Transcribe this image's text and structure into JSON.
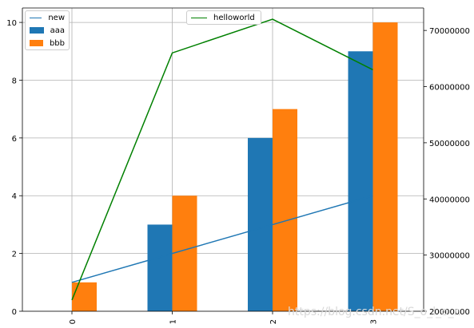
{
  "chart_data": {
    "type": "bar",
    "categories": [
      "0",
      "1",
      "2",
      "3"
    ],
    "series": [
      {
        "name": "aaa",
        "type": "bar",
        "axis": "left",
        "color": "#1f77b4",
        "values": [
          0,
          3,
          6,
          9
        ]
      },
      {
        "name": "bbb",
        "type": "bar",
        "axis": "left",
        "color": "#ff7f0e",
        "values": [
          1,
          4,
          7,
          10
        ]
      },
      {
        "name": "new",
        "type": "line",
        "axis": "left",
        "color": "#1f77b4",
        "values": [
          1,
          2,
          3,
          4
        ]
      },
      {
        "name": "helloworld",
        "type": "line",
        "axis": "right",
        "color": "#008000",
        "values": [
          22000000,
          66000000,
          72000000,
          63000000
        ]
      }
    ],
    "left_axis": {
      "ylim": [
        0,
        10.5
      ],
      "ticks": [
        "0",
        "2",
        "4",
        "6",
        "8",
        "10"
      ]
    },
    "right_axis": {
      "ylim": [
        20000000,
        74000000
      ],
      "ticks": [
        "20000000",
        "30000000",
        "40000000",
        "50000000",
        "60000000",
        "70000000"
      ]
    },
    "grid": true,
    "legend_left": [
      "new",
      "aaa",
      "bbb"
    ],
    "legend_right": [
      "helloworld"
    ],
    "legend_left_placement": "top-left",
    "legend_right_placement": "top-center"
  },
  "watermark": "https://blog.csdn.net/S_o_l_o_n"
}
